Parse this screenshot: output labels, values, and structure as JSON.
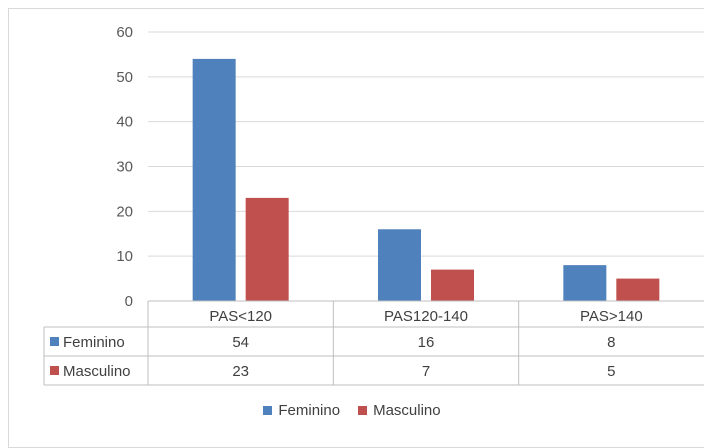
{
  "chart_data": {
    "type": "bar",
    "categories": [
      "PAS<120",
      "PAS120-140",
      "PAS>140"
    ],
    "series": [
      {
        "name": "Feminino",
        "values": [
          54,
          16,
          8
        ],
        "color": "#4f81bd"
      },
      {
        "name": "Masculino",
        "values": [
          23,
          7,
          5
        ],
        "color": "#c0504d"
      }
    ],
    "yticks": [
      "0",
      "10",
      "20",
      "30",
      "40",
      "50",
      "60"
    ],
    "ylim": [
      0,
      60
    ],
    "grid": true,
    "data_table": true,
    "legend_position": "bottom"
  }
}
